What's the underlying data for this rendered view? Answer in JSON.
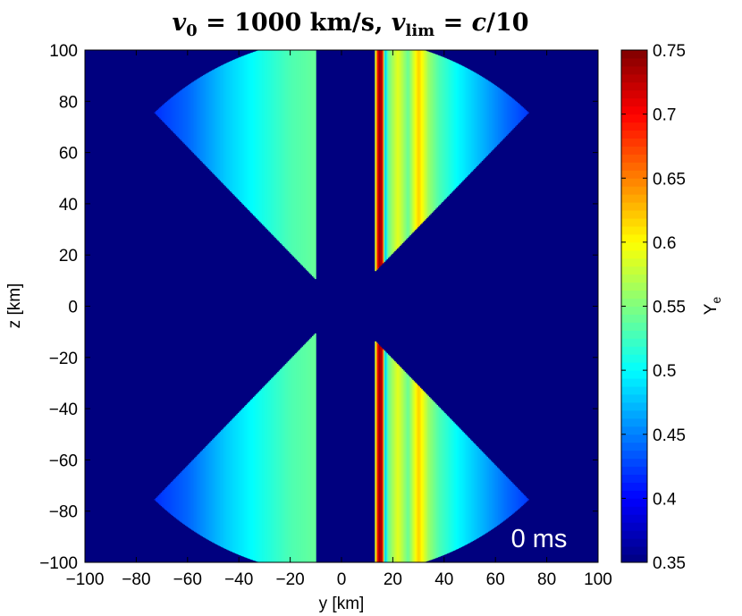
{
  "chart_data": {
    "type": "heatmap",
    "title": {
      "v": "v",
      "v_sub": "0",
      "eq1": " = 1000 km/s, ",
      "vlim": "v",
      "vlim_sub": "lim",
      "eq2": " = ",
      "c": "c",
      "tail": "/10"
    },
    "xlabel": "y [km]",
    "ylabel": "z [km]",
    "xlim": [
      -100,
      100
    ],
    "ylim": [
      -100,
      100
    ],
    "xticks": [
      "−100",
      "−80",
      "−60",
      "−40",
      "−20",
      "0",
      "20",
      "40",
      "60",
      "80",
      "100"
    ],
    "xtick_values": [
      -100,
      -80,
      -60,
      -40,
      -20,
      0,
      20,
      40,
      60,
      80,
      100
    ],
    "yticks": [
      "100",
      "80",
      "60",
      "40",
      "20",
      "0",
      "−20",
      "−40",
      "−60",
      "−80",
      "−100"
    ],
    "ytick_values": [
      100,
      80,
      60,
      40,
      20,
      0,
      -20,
      -40,
      -60,
      -80,
      -100
    ],
    "colorbar": {
      "label": "Y",
      "label_sub": "e",
      "range": [
        0.35,
        0.75
      ],
      "ticks": [
        "0.75",
        "0.7",
        "0.65",
        "0.6",
        "0.55",
        "0.5",
        "0.45",
        "0.4",
        "0.35"
      ],
      "tick_values": [
        0.75,
        0.7,
        0.65,
        0.6,
        0.55,
        0.5,
        0.45,
        0.4,
        0.35
      ],
      "colormap": "jet"
    },
    "annotation": "0 ms",
    "field": {
      "background_value": 0.35,
      "cone_half_opening_from_z_axis_deg": 44,
      "outer_radius_km": 105,
      "inner_radius_km": 10,
      "excluded_band_y_km": [
        -10,
        13
      ],
      "left_profile": [
        [
          -78,
          0.41
        ],
        [
          -60,
          0.44
        ],
        [
          -45,
          0.48
        ],
        [
          -30,
          0.51
        ],
        [
          -20,
          0.53
        ],
        [
          -10,
          0.54
        ]
      ],
      "right_profile": [
        [
          13,
          0.56
        ],
        [
          14.5,
          0.74
        ],
        [
          16,
          0.72
        ],
        [
          17,
          0.46
        ],
        [
          18,
          0.54
        ],
        [
          22,
          0.59
        ],
        [
          26,
          0.54
        ],
        [
          30,
          0.62
        ],
        [
          34,
          0.56
        ],
        [
          38,
          0.53
        ],
        [
          45,
          0.5
        ],
        [
          55,
          0.47
        ],
        [
          65,
          0.44
        ],
        [
          78,
          0.41
        ]
      ],
      "colors": {
        "background": "#00007f",
        "frame": "#000000"
      }
    }
  }
}
